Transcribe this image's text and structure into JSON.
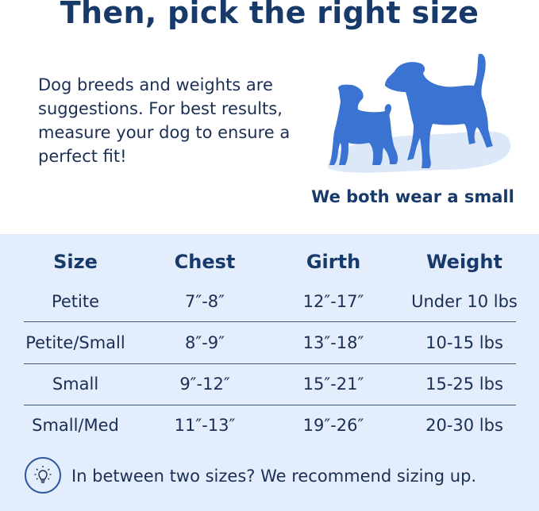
{
  "title": "Then, pick the right size",
  "intro": "Dog breeds and weights are suggestions. For best results, measure your dog to ensure a perfect fit!",
  "caption": "We both wear a small",
  "colors": {
    "navy": "#173a6b",
    "dog_blue": "#3a73d1",
    "panel_bg": "#e3edfb"
  },
  "table": {
    "headers": [
      "Size",
      "Chest",
      "Girth",
      "Weight"
    ],
    "rows": [
      [
        "Petite",
        "7″-8″",
        "12″-17″",
        "Under 10 lbs"
      ],
      [
        "Petite/Small",
        "8″-9″",
        "13″-18″",
        "10-15 lbs"
      ],
      [
        "Small",
        "9″-12″",
        "15″-21″",
        "15-25 lbs"
      ],
      [
        "Small/Med",
        "11″-13″",
        "19″-26″",
        "20-30 lbs"
      ]
    ]
  },
  "tip": {
    "icon": "lightbulb-icon",
    "text": "In between two sizes? We recommend sizing up."
  }
}
